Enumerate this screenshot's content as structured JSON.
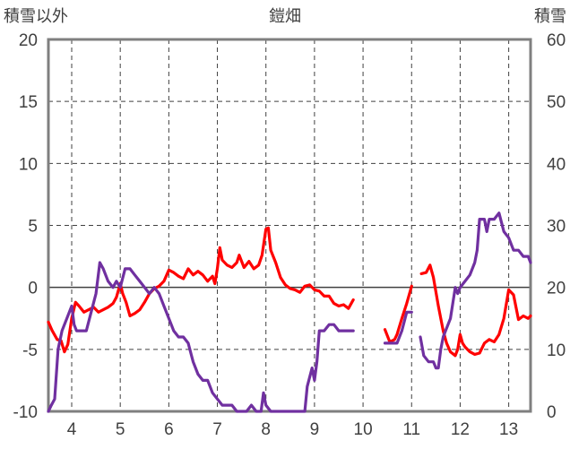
{
  "chart_data": {
    "type": "line",
    "title": "鎧畑",
    "left_axis": {
      "label": "積雪以外",
      "ylim": [
        -10,
        20
      ],
      "ticks": [
        -10,
        -5,
        0,
        5,
        10,
        15,
        20
      ]
    },
    "right_axis": {
      "label": "積雪",
      "ylim": [
        0,
        60
      ],
      "ticks": [
        0,
        10,
        20,
        30,
        40,
        50,
        60
      ]
    },
    "x_axis": {
      "xlim": [
        3.52,
        13.45
      ],
      "ticks": [
        4,
        5,
        6,
        7,
        8,
        9,
        10,
        11,
        12,
        13
      ]
    },
    "grid": {
      "vertical": true,
      "horizontal": true,
      "style": "dashed",
      "zero_line": "solid"
    },
    "colors": {
      "red_series": "#ff0000",
      "purple_series": "#7030a0",
      "grid": "#404040",
      "frame": "#7f7f7f"
    },
    "series": [
      {
        "axis": "left",
        "color": "#ff0000",
        "segments": [
          [
            [
              3.52,
              -2.8
            ],
            [
              3.6,
              -3.5
            ],
            [
              3.7,
              -4.2
            ],
            [
              3.78,
              -4.3
            ],
            [
              3.85,
              -5.2
            ],
            [
              3.92,
              -4.6
            ],
            [
              4.0,
              -2.5
            ],
            [
              4.08,
              -1.2
            ],
            [
              4.15,
              -1.5
            ],
            [
              4.25,
              -2.0
            ],
            [
              4.35,
              -1.8
            ],
            [
              4.45,
              -1.6
            ],
            [
              4.55,
              -2.0
            ],
            [
              4.65,
              -1.8
            ],
            [
              4.75,
              -1.6
            ],
            [
              4.85,
              -1.3
            ],
            [
              4.92,
              -0.8
            ],
            [
              5.0,
              0.3
            ],
            [
              5.05,
              -0.5
            ],
            [
              5.12,
              -1.2
            ],
            [
              5.2,
              -2.3
            ],
            [
              5.3,
              -2.1
            ],
            [
              5.4,
              -1.8
            ],
            [
              5.5,
              -1.2
            ],
            [
              5.6,
              -0.5
            ],
            [
              5.7,
              -0.1
            ],
            [
              5.8,
              0.1
            ],
            [
              5.9,
              0.5
            ],
            [
              6.0,
              1.4
            ],
            [
              6.1,
              1.2
            ],
            [
              6.2,
              0.9
            ],
            [
              6.3,
              0.7
            ],
            [
              6.4,
              1.5
            ],
            [
              6.5,
              1.0
            ],
            [
              6.6,
              1.3
            ],
            [
              6.7,
              1.0
            ],
            [
              6.8,
              0.5
            ],
            [
              6.9,
              0.9
            ],
            [
              6.95,
              0.3
            ],
            [
              7.0,
              1.5
            ],
            [
              7.05,
              3.2
            ],
            [
              7.1,
              2.2
            ],
            [
              7.2,
              1.8
            ],
            [
              7.3,
              1.6
            ],
            [
              7.4,
              2.0
            ],
            [
              7.45,
              2.6
            ],
            [
              7.55,
              1.6
            ],
            [
              7.65,
              2.1
            ],
            [
              7.75,
              1.5
            ],
            [
              7.85,
              1.8
            ],
            [
              7.92,
              2.6
            ],
            [
              8.0,
              4.7
            ],
            [
              8.05,
              4.8
            ],
            [
              8.1,
              3.0
            ],
            [
              8.2,
              2.0
            ],
            [
              8.3,
              0.8
            ],
            [
              8.4,
              0.2
            ],
            [
              8.5,
              -0.1
            ],
            [
              8.6,
              -0.2
            ],
            [
              8.7,
              -0.4
            ],
            [
              8.8,
              0.1
            ],
            [
              8.9,
              0.2
            ],
            [
              9.0,
              -0.2
            ],
            [
              9.1,
              -0.3
            ],
            [
              9.2,
              -0.7
            ],
            [
              9.3,
              -0.7
            ],
            [
              9.4,
              -1.3
            ],
            [
              9.5,
              -1.5
            ],
            [
              9.6,
              -1.4
            ],
            [
              9.7,
              -1.7
            ],
            [
              9.8,
              -1.0
            ]
          ],
          [
            [
              10.45,
              -3.4
            ],
            [
              10.55,
              -4.4
            ],
            [
              10.65,
              -4.2
            ],
            [
              10.7,
              -3.8
            ],
            [
              10.8,
              -2.5
            ],
            [
              10.9,
              -1.3
            ],
            [
              11.0,
              0.1
            ]
          ],
          [
            [
              11.2,
              1.1
            ],
            [
              11.3,
              1.2
            ],
            [
              11.38,
              1.8
            ],
            [
              11.45,
              0.8
            ],
            [
              11.55,
              -1.5
            ],
            [
              11.65,
              -3.5
            ],
            [
              11.72,
              -4.5
            ],
            [
              11.8,
              -5.2
            ],
            [
              11.9,
              -5.5
            ],
            [
              11.95,
              -5.0
            ],
            [
              12.0,
              -3.8
            ],
            [
              12.05,
              -4.5
            ],
            [
              12.1,
              -4.8
            ],
            [
              12.2,
              -5.2
            ],
            [
              12.3,
              -5.4
            ],
            [
              12.4,
              -5.3
            ],
            [
              12.5,
              -4.5
            ],
            [
              12.6,
              -4.2
            ],
            [
              12.7,
              -4.4
            ],
            [
              12.8,
              -3.8
            ],
            [
              12.9,
              -2.5
            ],
            [
              13.0,
              -0.2
            ],
            [
              13.1,
              -0.6
            ],
            [
              13.2,
              -2.6
            ],
            [
              13.3,
              -2.3
            ],
            [
              13.4,
              -2.5
            ],
            [
              13.45,
              -2.3
            ]
          ]
        ]
      },
      {
        "axis": "right",
        "color": "#7030a0",
        "segments": [
          [
            [
              3.52,
              0
            ],
            [
              3.58,
              1
            ],
            [
              3.65,
              2
            ],
            [
              3.72,
              10
            ],
            [
              3.8,
              13
            ],
            [
              3.9,
              15
            ],
            [
              4.0,
              17
            ],
            [
              4.05,
              14
            ],
            [
              4.1,
              13
            ],
            [
              4.2,
              13
            ],
            [
              4.3,
              13
            ],
            [
              4.4,
              16
            ],
            [
              4.5,
              19
            ],
            [
              4.58,
              24
            ],
            [
              4.65,
              23
            ],
            [
              4.75,
              21
            ],
            [
              4.85,
              20
            ],
            [
              4.92,
              21
            ],
            [
              5.0,
              20
            ],
            [
              5.1,
              23
            ],
            [
              5.2,
              23
            ],
            [
              5.3,
              22
            ],
            [
              5.4,
              21
            ],
            [
              5.5,
              20
            ],
            [
              5.6,
              19
            ],
            [
              5.7,
              20
            ],
            [
              5.8,
              19
            ],
            [
              5.9,
              17
            ],
            [
              6.0,
              15
            ],
            [
              6.1,
              13
            ],
            [
              6.2,
              12
            ],
            [
              6.3,
              12
            ],
            [
              6.4,
              11
            ],
            [
              6.5,
              8
            ],
            [
              6.6,
              6
            ],
            [
              6.7,
              5
            ],
            [
              6.8,
              5
            ],
            [
              6.9,
              3
            ],
            [
              7.0,
              2
            ],
            [
              7.1,
              1
            ],
            [
              7.2,
              1
            ],
            [
              7.3,
              1
            ],
            [
              7.4,
              0
            ],
            [
              7.5,
              0
            ],
            [
              7.6,
              0
            ],
            [
              7.7,
              1
            ],
            [
              7.8,
              0
            ],
            [
              7.9,
              0
            ],
            [
              7.95,
              3
            ],
            [
              8.0,
              1
            ],
            [
              8.1,
              0
            ],
            [
              8.2,
              0
            ],
            [
              8.3,
              0
            ],
            [
              8.4,
              0
            ],
            [
              8.5,
              0
            ],
            [
              8.6,
              0
            ],
            [
              8.7,
              0
            ],
            [
              8.8,
              0
            ],
            [
              8.85,
              4
            ],
            [
              8.95,
              7
            ],
            [
              9.0,
              5
            ],
            [
              9.05,
              8
            ],
            [
              9.1,
              13
            ],
            [
              9.2,
              13
            ],
            [
              9.3,
              14
            ],
            [
              9.4,
              14
            ],
            [
              9.5,
              13
            ],
            [
              9.6,
              13
            ],
            [
              9.7,
              13
            ],
            [
              9.8,
              13
            ]
          ],
          [
            [
              10.45,
              11
            ],
            [
              10.55,
              11
            ],
            [
              10.7,
              11
            ],
            [
              10.8,
              13
            ],
            [
              10.9,
              16
            ],
            [
              11.0,
              16
            ]
          ],
          [
            [
              11.18,
              12
            ],
            [
              11.25,
              9
            ],
            [
              11.35,
              8
            ],
            [
              11.45,
              8
            ],
            [
              11.5,
              7
            ],
            [
              11.55,
              7
            ],
            [
              11.6,
              10
            ],
            [
              11.65,
              12
            ],
            [
              11.7,
              13
            ],
            [
              11.8,
              15
            ],
            [
              11.9,
              20
            ],
            [
              11.95,
              19
            ],
            [
              12.0,
              20
            ],
            [
              12.1,
              21
            ],
            [
              12.2,
              22
            ],
            [
              12.3,
              24
            ],
            [
              12.35,
              26
            ],
            [
              12.4,
              31
            ],
            [
              12.5,
              31
            ],
            [
              12.55,
              29
            ],
            [
              12.6,
              31
            ],
            [
              12.7,
              31
            ],
            [
              12.8,
              32
            ],
            [
              12.9,
              29
            ],
            [
              13.0,
              28
            ],
            [
              13.1,
              26
            ],
            [
              13.2,
              26
            ],
            [
              13.3,
              25
            ],
            [
              13.4,
              25
            ],
            [
              13.45,
              24
            ]
          ]
        ]
      }
    ]
  }
}
